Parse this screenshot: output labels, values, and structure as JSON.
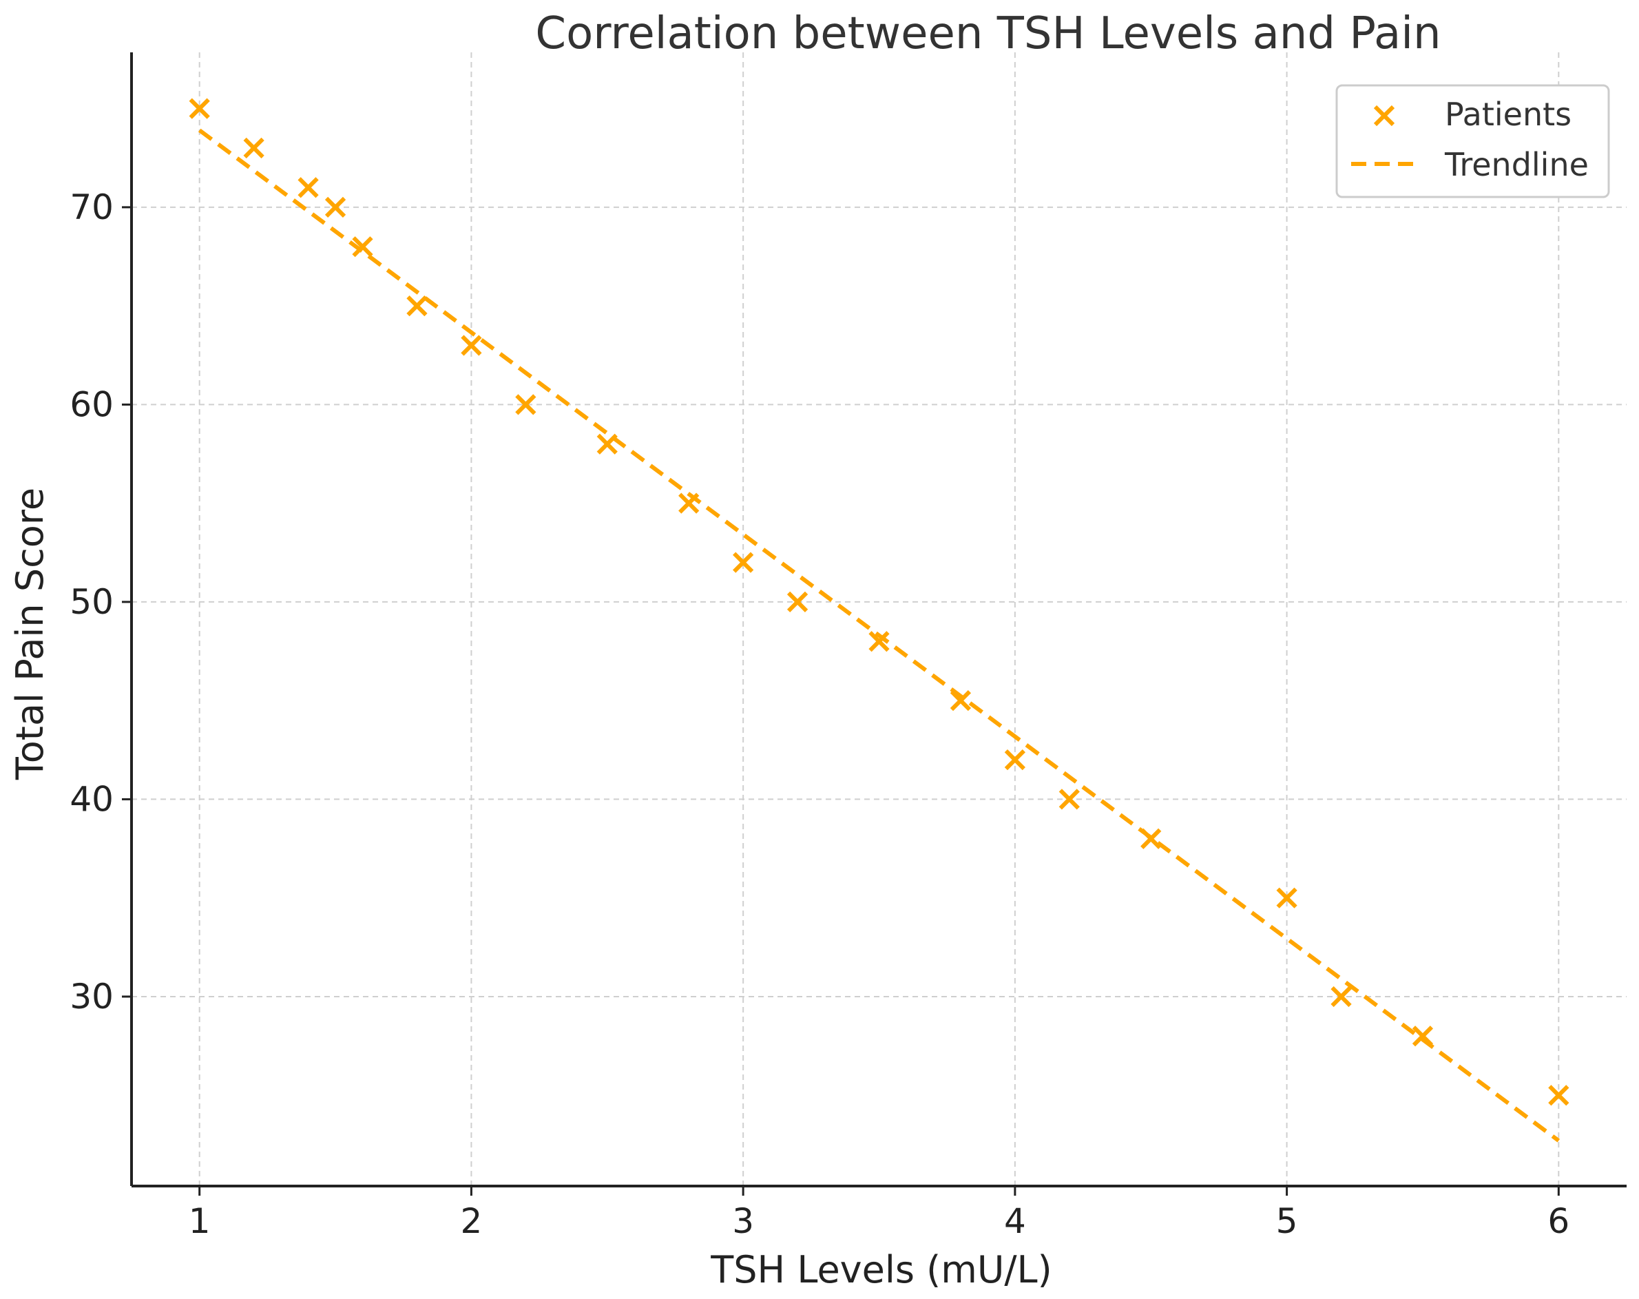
{
  "chart_data": {
    "type": "scatter",
    "title": "Correlation between TSH Levels and Pain",
    "xlabel": "TSH Levels (mU/L)",
    "ylabel": "Total Pain Score",
    "xlim": [
      0.75,
      6.25
    ],
    "ylim": [
      20.4,
      77.5
    ],
    "x_ticks": [
      1,
      2,
      3,
      4,
      5,
      6
    ],
    "y_ticks": [
      30,
      40,
      50,
      60,
      70
    ],
    "grid": true,
    "legend_position": "top-right",
    "color": "#FFA500",
    "series": [
      {
        "name": "Patients",
        "marker": "x",
        "x": [
          1.0,
          1.2,
          1.4,
          1.5,
          1.6,
          1.8,
          2.0,
          2.2,
          2.5,
          2.8,
          3.0,
          3.2,
          3.5,
          3.8,
          4.0,
          4.2,
          4.5,
          5.0,
          5.2,
          5.5,
          6.0
        ],
        "y": [
          75,
          73,
          71,
          70,
          68,
          65,
          63,
          60,
          58,
          55,
          52,
          50,
          48,
          45,
          42,
          40,
          38,
          35,
          30,
          28,
          25
        ]
      },
      {
        "name": "Trendline",
        "style": "dashed",
        "x": [
          1.0,
          6.0
        ],
        "y": [
          73.9,
          22.7
        ]
      }
    ]
  }
}
